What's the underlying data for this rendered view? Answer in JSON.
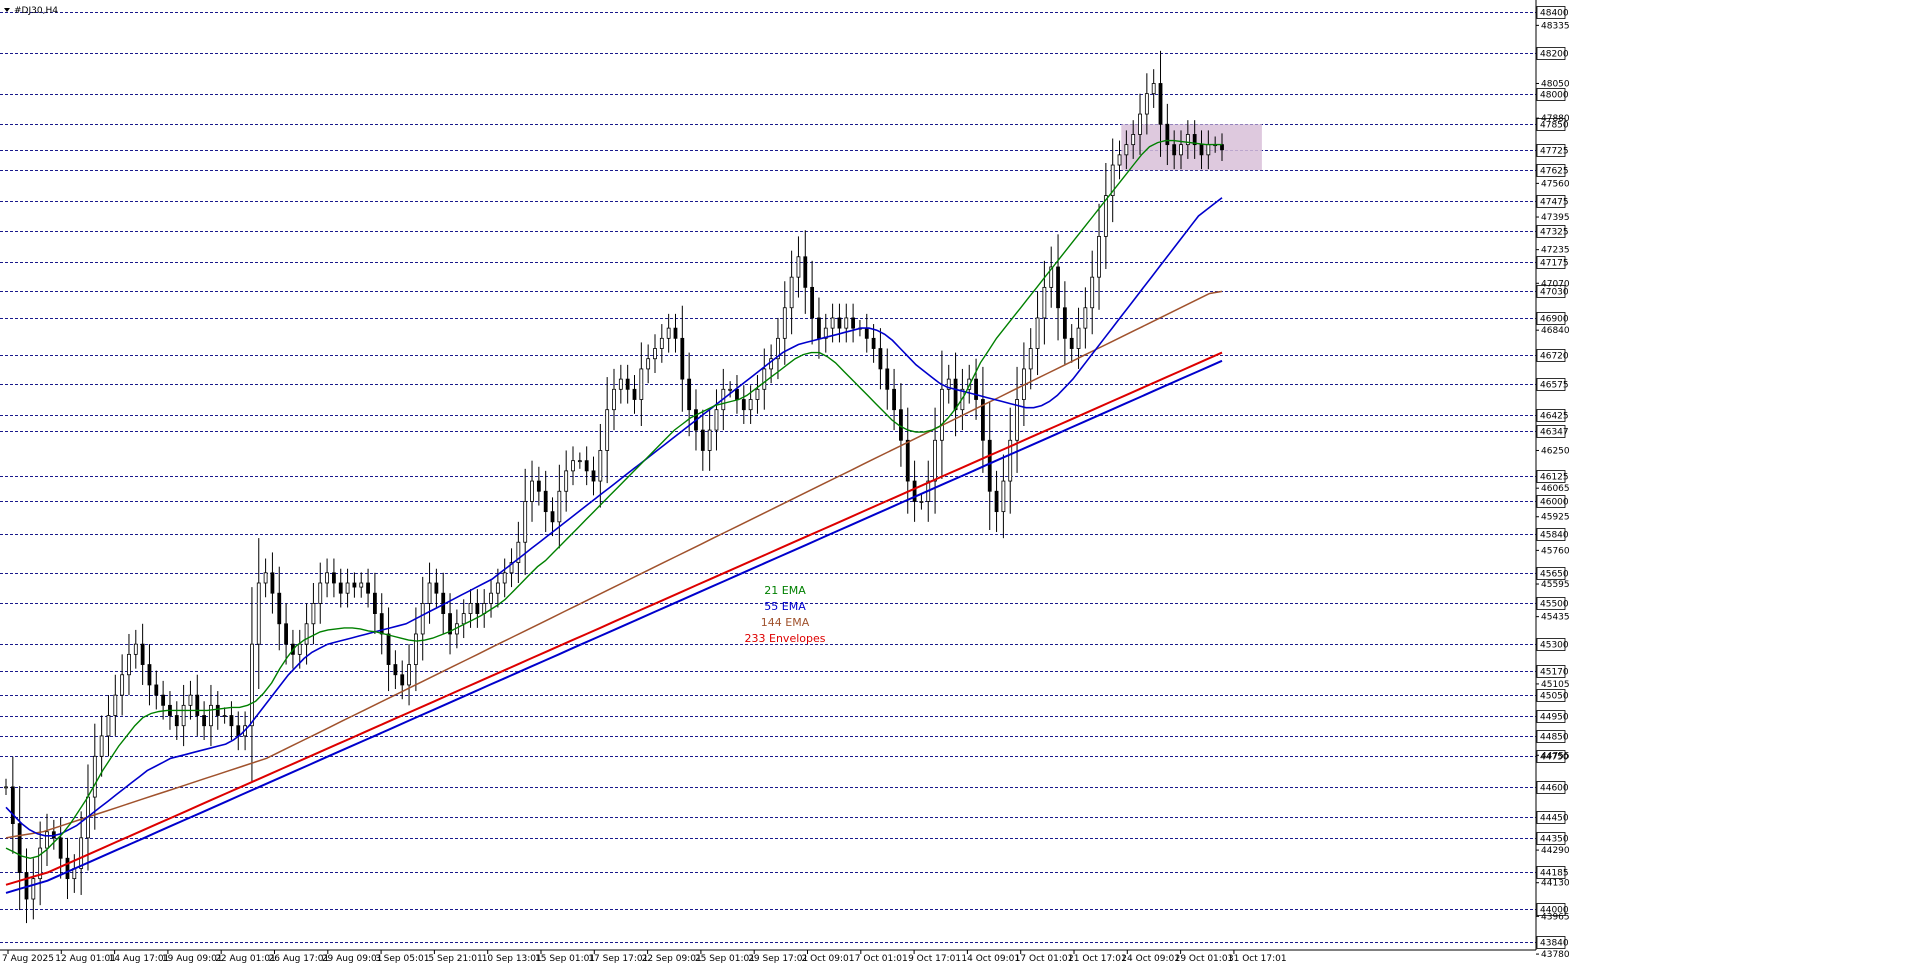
{
  "window": {
    "title": "#DJ30,H4",
    "menu_icon": "triangle-down-icon"
  },
  "legend": [
    {
      "label": "21 EMA",
      "color": "#008000"
    },
    {
      "label": "55 EMA",
      "color": "#0000cc"
    },
    {
      "label": "144 EMA",
      "color": "#a0522d"
    },
    {
      "label": "233 Envelopes",
      "color": "#dd0000"
    }
  ],
  "chart_data": {
    "type": "line",
    "symbol": "#DJ30",
    "timeframe": "H4",
    "ylim": [
      43800,
      48430
    ],
    "grid": false,
    "x_tick_labels": [
      "7 Aug 2025",
      "12 Aug 01:01",
      "14 Aug 17:01",
      "19 Aug 09:01",
      "22 Aug 01:01",
      "26 Aug 17:01",
      "29 Aug 09:01",
      "3 Sep 05:01",
      "5 Sep 21:01",
      "10 Sep 13:01",
      "15 Sep 01:01",
      "17 Sep 17:01",
      "22 Sep 09:01",
      "25 Sep 01:01",
      "29 Sep 17:01",
      "2 Oct 09:01",
      "7 Oct 01:01",
      "9 Oct 17:01",
      "14 Oct 09:01",
      "17 Oct 01:01",
      "21 Oct 17:01",
      "24 Oct 09:01",
      "29 Oct 01:01",
      "31 Oct 17:01"
    ],
    "price_scale_labels": [
      "48335",
      "48050",
      "47880",
      "47560",
      "47395",
      "47235",
      "47070",
      "46840",
      "46250",
      "46065",
      "45925",
      "45760",
      "45595",
      "45435",
      "45105",
      "44755",
      "44290",
      "44130",
      "43965",
      "43780"
    ],
    "horizontal_levels": [
      48400,
      48200,
      48000,
      47850,
      47725,
      47625,
      47475,
      47325,
      47175,
      47030,
      46900,
      46720,
      46575,
      46425,
      46347,
      46125,
      46000,
      45840,
      45650,
      45500,
      45300,
      45170,
      45050,
      44950,
      44850,
      44750,
      44600,
      44450,
      44350,
      44185,
      44000,
      43840
    ],
    "level_color": "#1a1a8c",
    "range_box": {
      "top": 47850,
      "bottom": 47625,
      "x_from": "24 Oct 09:01",
      "x_to": "31 Oct 17:01",
      "color": "#d8bfd8"
    },
    "candle_color": "#000000",
    "closes": [
      44600,
      44420,
      44180,
      44050,
      44150,
      44300,
      44380,
      44350,
      44250,
      44150,
      44200,
      44350,
      44550,
      44750,
      44850,
      44950,
      45050,
      45150,
      45250,
      45300,
      45200,
      45100,
      45050,
      45000,
      44950,
      44900,
      45000,
      45050,
      44950,
      44900,
      45000,
      44950,
      44950,
      44900,
      44850,
      44900,
      45300,
      45600,
      45650,
      45550,
      45400,
      45300,
      45250,
      45300,
      45400,
      45500,
      45600,
      45650,
      45600,
      45550,
      45600,
      45580,
      45600,
      45550,
      45450,
      45350,
      45200,
      45150,
      45100,
      45200,
      45350,
      45500,
      45600,
      45550,
      45450,
      45350,
      45400,
      45450,
      45500,
      45450,
      45500,
      45550,
      45600,
      45650,
      45700,
      45800,
      46000,
      46100,
      46050,
      45950,
      45900,
      46050,
      46150,
      46200,
      46200,
      46150,
      46100,
      46250,
      46450,
      46550,
      46600,
      46550,
      46500,
      46650,
      46700,
      46750,
      46800,
      46850,
      46800,
      46600,
      46450,
      46350,
      46250,
      46350,
      46450,
      46550,
      46550,
      46500,
      46450,
      46500,
      46550,
      46650,
      46700,
      46800,
      46950,
      47100,
      47200,
      47050,
      46900,
      46800,
      46850,
      46900,
      46850,
      46900,
      46850,
      46850,
      46800,
      46750,
      46650,
      46550,
      46450,
      46300,
      46100,
      46000,
      46000,
      46100,
      46300,
      46550,
      46600,
      46450,
      46550,
      46600,
      46500,
      46300,
      46050,
      45950,
      46100,
      46300,
      46500,
      46650,
      46750,
      46900,
      47050,
      47150,
      46950,
      46800,
      46750,
      46850,
      46950,
      47100,
      47300,
      47500,
      47650,
      47700,
      47750,
      47800,
      47900,
      48000,
      48050,
      47850,
      47750,
      47700,
      47750,
      47800,
      47750,
      47700,
      47750,
      47750,
      47725
    ],
    "ema_21": [
      44300,
      44280,
      44260,
      44250,
      44260,
      44290,
      44330,
      44370,
      44420,
      44480,
      44540,
      44610,
      44680,
      44740,
      44800,
      44850,
      44900,
      44940,
      44960,
      44970,
      44975,
      44975,
      44975,
      44975,
      44975,
      44975,
      44980,
      44985,
      44990,
      44990,
      45000,
      45020,
      45060,
      45110,
      45180,
      45240,
      45290,
      45320,
      45340,
      45360,
      45370,
      45375,
      45380,
      45380,
      45375,
      45365,
      45360,
      45350,
      45340,
      45330,
      45320,
      45315,
      45320,
      45330,
      45345,
      45360,
      45380,
      45400,
      45420,
      45440,
      45465,
      45490,
      45520,
      45560,
      45600,
      45640,
      45680,
      45710,
      45750,
      45790,
      45830,
      45870,
      45910,
      45950,
      45990,
      46030,
      46070,
      46110,
      46150,
      46190,
      46230,
      46270,
      46310,
      46350,
      46380,
      46410,
      46430,
      46450,
      46470,
      46480,
      46490,
      46500,
      46520,
      46550,
      46580,
      46610,
      46640,
      46670,
      46700,
      46720,
      46730,
      46730,
      46710,
      46680,
      46640,
      46600,
      46560,
      46520,
      46480,
      46440,
      46400,
      46370,
      46350,
      46340,
      46340,
      46350,
      46370,
      46410,
      46460,
      46520,
      46600,
      46680,
      46740,
      46800,
      46850,
      46900,
      46950,
      47000,
      47050,
      47100,
      47150,
      47200,
      47250,
      47300,
      47350,
      47400,
      47450,
      47500,
      47550,
      47600,
      47650,
      47700,
      47740,
      47760,
      47770,
      47770,
      47765,
      47760,
      47755,
      47750,
      47750,
      47750
    ],
    "ema_55": [
      44500,
      44460,
      44420,
      44390,
      44370,
      44360,
      44360,
      44370,
      44390,
      44410,
      44440,
      44470,
      44500,
      44530,
      44560,
      44590,
      44620,
      44650,
      44680,
      44700,
      44720,
      44740,
      44750,
      44760,
      44770,
      44780,
      44790,
      44800,
      44810,
      44830,
      44860,
      44900,
      44950,
      45000,
      45050,
      45100,
      45150,
      45190,
      45230,
      45260,
      45280,
      45300,
      45310,
      45320,
      45330,
      45340,
      45350,
      45360,
      45370,
      45380,
      45390,
      45400,
      45420,
      45440,
      45460,
      45480,
      45500,
      45520,
      45540,
      45560,
      45580,
      45600,
      45620,
      45650,
      45680,
      45710,
      45740,
      45770,
      45800,
      45830,
      45860,
      45890,
      45920,
      45950,
      45980,
      46010,
      46040,
      46070,
      46100,
      46130,
      46160,
      46190,
      46220,
      46250,
      46280,
      46310,
      46340,
      46370,
      46400,
      46430,
      46460,
      46490,
      46520,
      46550,
      46580,
      46610,
      46640,
      46670,
      46700,
      46730,
      46750,
      46770,
      46780,
      46790,
      46800,
      46810,
      46820,
      46830,
      46840,
      46850,
      46850,
      46840,
      46820,
      46790,
      46750,
      46710,
      46670,
      46640,
      46610,
      46580,
      46560,
      46550,
      46540,
      46530,
      46520,
      46510,
      46500,
      46490,
      46480,
      46470,
      46460,
      46460,
      46470,
      46490,
      46520,
      46560,
      46600,
      46650,
      46700,
      46750,
      46800,
      46850,
      46900,
      46950,
      47000,
      47050,
      47100,
      47150,
      47200,
      47250,
      47300,
      47350,
      47400,
      47430,
      47460,
      47490
    ],
    "ema_144": [
      44350,
      44360,
      44370,
      44380,
      44400,
      44420,
      44440,
      44460,
      44480,
      44500,
      44520,
      44540,
      44560,
      44580,
      44600,
      44620,
      44640,
      44660,
      44680,
      44700,
      44720,
      44740,
      44770,
      44800,
      44830,
      44860,
      44890,
      44920,
      44950,
      44980,
      45010,
      45040,
      45070,
      45100,
      45130,
      45160,
      45190,
      45220,
      45250,
      45280,
      45310,
      45340,
      45370,
      45400,
      45430,
      45460,
      45490,
      45520,
      45550,
      45580,
      45610,
      45640,
      45670,
      45700,
      45730,
      45760,
      45790,
      45820,
      45850,
      45880,
      45910,
      45940,
      45970,
      46000,
      46030,
      46060,
      46090,
      46120,
      46150,
      46180,
      46210,
      46240,
      46270,
      46300,
      46330,
      46360,
      46390,
      46420,
      46450,
      46480,
      46510,
      46540,
      46570,
      46600,
      46630,
      46660,
      46690,
      46720,
      46750,
      46780,
      46810,
      46840,
      46870,
      46900,
      46930,
      46960,
      46990,
      47020,
      47030
    ],
    "envelope_upper_233": [
      44120,
      44140,
      44160,
      44180,
      44210,
      44240,
      44270,
      44300,
      44330,
      44360,
      44390,
      44420,
      44450,
      44480,
      44510,
      44540,
      44570,
      44600,
      44630,
      44660,
      44690,
      44720,
      44750,
      44780,
      44810,
      44840,
      44870,
      44900,
      44930,
      44960,
      44990,
      45020,
      45050,
      45080,
      45110,
      45140,
      45170,
      45200,
      45230,
      45260,
      45290,
      45320,
      45350,
      45380,
      45410,
      45440,
      45470,
      45500,
      45530,
      45560,
      45590,
      45620,
      45650,
      45680,
      45710,
      45740,
      45770,
      45800,
      45830,
      45860,
      45890,
      45920,
      45950,
      45980,
      46010,
      46040,
      46070,
      46100,
      46130,
      46160,
      46190,
      46220,
      46250,
      46280,
      46310,
      46340,
      46370,
      46400,
      46430,
      46460,
      46490,
      46520,
      46550,
      46580,
      46610,
      46640,
      46670,
      46700,
      46730
    ],
    "envelope_lower_233": [
      44080,
      44100,
      44120,
      44140,
      44170,
      44200,
      44230,
      44260,
      44290,
      44320,
      44350,
      44380,
      44410,
      44440,
      44470,
      44500,
      44530,
      44560,
      44590,
      44620,
      44650,
      44680,
      44710,
      44740,
      44770,
      44800,
      44830,
      44860,
      44890,
      44920,
      44950,
      44980,
      45010,
      45040,
      45070,
      45100,
      45130,
      45160,
      45190,
      45220,
      45250,
      45280,
      45310,
      45340,
      45370,
      45400,
      45430,
      45460,
      45490,
      45520,
      45550,
      45580,
      45610,
      45640,
      45670,
      45700,
      45730,
      45760,
      45790,
      45820,
      45850,
      45880,
      45910,
      45940,
      45970,
      46000,
      46030,
      46060,
      46090,
      46120,
      46150,
      46180,
      46210,
      46240,
      46270,
      46300,
      46330,
      46360,
      46390,
      46420,
      46450,
      46480,
      46510,
      46540,
      46570,
      46600,
      46630,
      46660,
      46690
    ]
  }
}
